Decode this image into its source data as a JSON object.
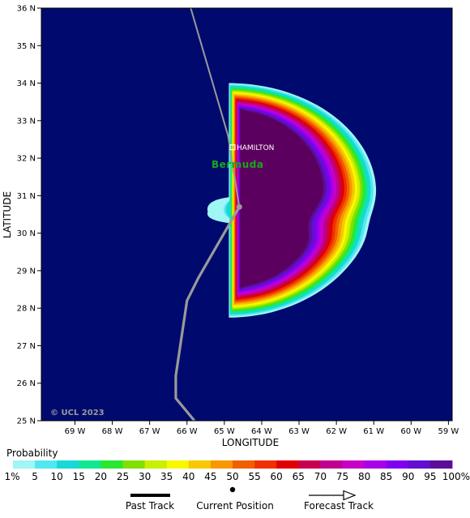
{
  "map": {
    "background_color": "#000a6e",
    "copyright": "© UCL 2023",
    "city": {
      "name": "HAMILTON",
      "lon": -64.78,
      "lat": 32.29
    },
    "island_label": "Bermuda",
    "island_label_color": "#1aa61a",
    "xlabel": "LONGITUDE",
    "ylabel": "LATITUDE",
    "x_ticks": [
      {
        "value": -69,
        "label": "69 W"
      },
      {
        "value": -68,
        "label": "68 W"
      },
      {
        "value": -67,
        "label": "67 W"
      },
      {
        "value": -66,
        "label": "66 W"
      },
      {
        "value": -65,
        "label": "65 W"
      },
      {
        "value": -64,
        "label": "64 W"
      },
      {
        "value": -63,
        "label": "63 W"
      },
      {
        "value": -62,
        "label": "62 W"
      },
      {
        "value": -61,
        "label": "61 W"
      },
      {
        "value": -60,
        "label": "60 W"
      },
      {
        "value": -59,
        "label": "59 W"
      }
    ],
    "y_ticks": [
      {
        "value": 25,
        "label": "25 N"
      },
      {
        "value": 26,
        "label": "26 N"
      },
      {
        "value": 27,
        "label": "27 N"
      },
      {
        "value": 28,
        "label": "28 N"
      },
      {
        "value": 29,
        "label": "29 N"
      },
      {
        "value": 30,
        "label": "30 N"
      },
      {
        "value": 31,
        "label": "31 N"
      },
      {
        "value": 32,
        "label": "32 N"
      },
      {
        "value": 33,
        "label": "33 N"
      },
      {
        "value": 34,
        "label": "34 N"
      },
      {
        "value": 35,
        "label": "35 N"
      },
      {
        "value": 36,
        "label": "36 N"
      }
    ],
    "xlim": [
      -69.9,
      -58.9
    ],
    "ylim": [
      25,
      36
    ],
    "track": {
      "color": "#9a9a9a",
      "past": [
        {
          "lon": -65.8,
          "lat": 25.0
        },
        {
          "lon": -66.3,
          "lat": 25.6
        },
        {
          "lon": -66.3,
          "lat": 26.2
        },
        {
          "lon": -66.0,
          "lat": 28.2
        },
        {
          "lon": -65.7,
          "lat": 28.8
        },
        {
          "lon": -64.6,
          "lat": 30.7
        }
      ],
      "forecast": [
        {
          "lon": -64.6,
          "lat": 30.7
        },
        {
          "lon": -64.9,
          "lat": 32.6
        },
        {
          "lon": -65.9,
          "lat": 36.0
        }
      ],
      "current": {
        "lon": -64.6,
        "lat": 30.7
      }
    },
    "probability_field": {
      "west_edge_lon": -64.88,
      "center": {
        "lon": -64.88,
        "lat": 31.05
      },
      "outer_semi_axes_deg": {
        "east": 3.95,
        "north": 2.95,
        "south": 3.3
      },
      "inner_semi_axes_deg": {
        "east": 2.55,
        "north": 2.25,
        "south": 2.5
      },
      "dent": {
        "lat": 30.35,
        "depth_deg": 0.35
      }
    }
  },
  "legend": {
    "title": "Probability",
    "levels": [
      {
        "label": "1%",
        "color": "#a0f5f5"
      },
      {
        "label": "5",
        "color": "#50e8f0"
      },
      {
        "label": "10",
        "color": "#18d8d8"
      },
      {
        "label": "15",
        "color": "#10e890"
      },
      {
        "label": "20",
        "color": "#28e830"
      },
      {
        "label": "25",
        "color": "#80e000"
      },
      {
        "label": "30",
        "color": "#c8f000"
      },
      {
        "label": "35",
        "color": "#f8f800"
      },
      {
        "label": "40",
        "color": "#f8c800"
      },
      {
        "label": "45",
        "color": "#f89800"
      },
      {
        "label": "50",
        "color": "#f06000"
      },
      {
        "label": "55",
        "color": "#f03000"
      },
      {
        "label": "60",
        "color": "#e00000"
      },
      {
        "label": "65",
        "color": "#c80050"
      },
      {
        "label": "70",
        "color": "#c00090"
      },
      {
        "label": "75",
        "color": "#c800c8"
      },
      {
        "label": "80",
        "color": "#a800e8"
      },
      {
        "label": "85",
        "color": "#8000f0"
      },
      {
        "label": "90",
        "color": "#6010d0"
      },
      {
        "label": "95",
        "color": "#5c0c98"
      },
      {
        "label": "100%",
        "color": "#5c0060"
      }
    ]
  },
  "key": {
    "past_track": "Past Track",
    "current_position": "Current Position",
    "forecast_track": "Forecast Track"
  }
}
